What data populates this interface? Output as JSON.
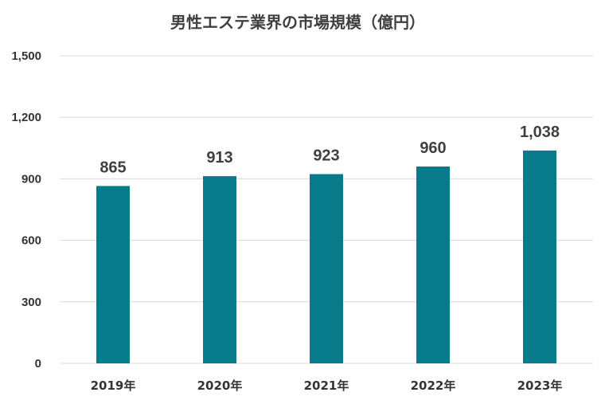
{
  "chart_data": {
    "type": "bar",
    "title": "男性エステ業界の市場規模（億円）",
    "categories": [
      "2019年",
      "2020年",
      "2021年",
      "2022年",
      "2023年"
    ],
    "values": [
      865,
      913,
      923,
      960,
      1038
    ],
    "data_labels": [
      "865",
      "913",
      "923",
      "960",
      "1,038"
    ],
    "ylim": [
      0,
      1500
    ],
    "yticks": [
      0,
      300,
      600,
      900,
      1200,
      1500
    ],
    "ytick_labels": [
      "0",
      "300",
      "600",
      "900",
      "1,200",
      "1,500"
    ],
    "xlabel": "",
    "ylabel": "",
    "grid": true,
    "legend": "none",
    "colors": {
      "bar": "#077b8a",
      "grid": "#d9d9d9",
      "text": "#404040"
    }
  }
}
